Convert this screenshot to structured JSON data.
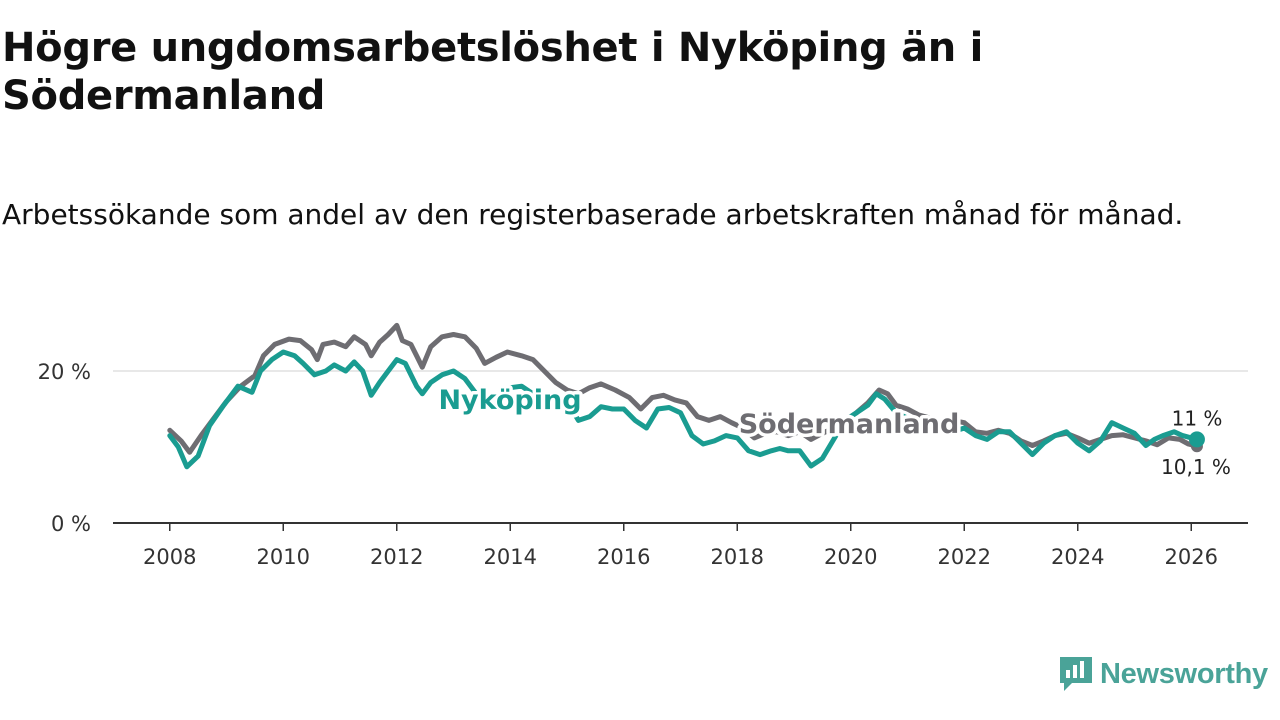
{
  "chart_data": {
    "type": "line",
    "title": "Högre ungdomsarbetslöshet i Nyköping än i Södermanland",
    "subtitle": "Arbetssökande som andel av den registerbaserade arbetskraften månad för månad.",
    "xlabel": "",
    "ylabel": "",
    "x_ticks": [
      "2008",
      "2010",
      "2012",
      "2014",
      "2016",
      "2018",
      "2020",
      "2022",
      "2024",
      "2026"
    ],
    "y_ticks": [
      0,
      20
    ],
    "y_tick_labels": [
      "0 %",
      "20 %"
    ],
    "xlim": [
      2007.0,
      2027.0
    ],
    "ylim": [
      0,
      30
    ],
    "grid": true,
    "series": [
      {
        "name": "Södermanland",
        "color": "#6e6d72",
        "end_label": "10,1 %",
        "points": [
          [
            2008.0,
            12.2
          ],
          [
            2008.2,
            10.8
          ],
          [
            2008.35,
            9.3
          ],
          [
            2008.55,
            11.5
          ],
          [
            2008.75,
            13.5
          ],
          [
            2009.0,
            16.0
          ],
          [
            2009.25,
            18.0
          ],
          [
            2009.5,
            19.4
          ],
          [
            2009.65,
            22.0
          ],
          [
            2009.85,
            23.5
          ],
          [
            2010.1,
            24.2
          ],
          [
            2010.3,
            24.0
          ],
          [
            2010.5,
            22.8
          ],
          [
            2010.6,
            21.5
          ],
          [
            2010.7,
            23.5
          ],
          [
            2010.9,
            23.8
          ],
          [
            2011.1,
            23.2
          ],
          [
            2011.25,
            24.5
          ],
          [
            2011.45,
            23.5
          ],
          [
            2011.55,
            22.0
          ],
          [
            2011.7,
            23.8
          ],
          [
            2011.85,
            24.8
          ],
          [
            2012.0,
            26.0
          ],
          [
            2012.1,
            24.0
          ],
          [
            2012.25,
            23.5
          ],
          [
            2012.35,
            22.0
          ],
          [
            2012.45,
            20.5
          ],
          [
            2012.6,
            23.2
          ],
          [
            2012.8,
            24.5
          ],
          [
            2013.0,
            24.8
          ],
          [
            2013.2,
            24.5
          ],
          [
            2013.4,
            23.0
          ],
          [
            2013.55,
            21.0
          ],
          [
            2013.75,
            21.8
          ],
          [
            2013.95,
            22.5
          ],
          [
            2014.2,
            22.0
          ],
          [
            2014.4,
            21.5
          ],
          [
            2014.6,
            20.0
          ],
          [
            2014.8,
            18.5
          ],
          [
            2015.0,
            17.5
          ],
          [
            2015.2,
            17.0
          ],
          [
            2015.4,
            17.8
          ],
          [
            2015.6,
            18.3
          ],
          [
            2015.85,
            17.5
          ],
          [
            2016.1,
            16.5
          ],
          [
            2016.3,
            15.0
          ],
          [
            2016.5,
            16.5
          ],
          [
            2016.7,
            16.8
          ],
          [
            2016.9,
            16.2
          ],
          [
            2017.1,
            15.8
          ],
          [
            2017.3,
            14.0
          ],
          [
            2017.5,
            13.5
          ],
          [
            2017.7,
            14.0
          ],
          [
            2017.9,
            13.2
          ],
          [
            2018.1,
            12.5
          ],
          [
            2018.3,
            11.2
          ],
          [
            2018.5,
            11.8
          ],
          [
            2018.7,
            12.0
          ],
          [
            2018.9,
            11.5
          ],
          [
            2019.1,
            12.0
          ],
          [
            2019.3,
            11.0
          ],
          [
            2019.5,
            11.8
          ],
          [
            2019.7,
            12.5
          ],
          [
            2019.9,
            13.5
          ],
          [
            2020.1,
            14.5
          ],
          [
            2020.3,
            15.8
          ],
          [
            2020.5,
            17.5
          ],
          [
            2020.65,
            17.0
          ],
          [
            2020.8,
            15.5
          ],
          [
            2021.0,
            15.0
          ],
          [
            2021.2,
            14.2
          ],
          [
            2021.4,
            13.8
          ],
          [
            2021.6,
            13.2
          ],
          [
            2021.8,
            13.5
          ],
          [
            2022.0,
            13.2
          ],
          [
            2022.2,
            12.0
          ],
          [
            2022.4,
            11.8
          ],
          [
            2022.6,
            12.2
          ],
          [
            2022.8,
            11.8
          ],
          [
            2023.0,
            10.8
          ],
          [
            2023.2,
            10.2
          ],
          [
            2023.4,
            10.8
          ],
          [
            2023.6,
            11.5
          ],
          [
            2023.8,
            11.8
          ],
          [
            2024.0,
            11.2
          ],
          [
            2024.2,
            10.5
          ],
          [
            2024.4,
            11.0
          ],
          [
            2024.6,
            11.5
          ],
          [
            2024.8,
            11.6
          ],
          [
            2025.0,
            11.2
          ],
          [
            2025.2,
            10.8
          ],
          [
            2025.4,
            10.3
          ],
          [
            2025.6,
            11.2
          ],
          [
            2025.8,
            11.0
          ],
          [
            2025.95,
            10.4
          ],
          [
            2026.1,
            10.1
          ]
        ]
      },
      {
        "name": "Nyköping",
        "color": "#1a9c91",
        "end_label": "11 %",
        "points": [
          [
            2008.0,
            11.5
          ],
          [
            2008.15,
            10.0
          ],
          [
            2008.3,
            7.4
          ],
          [
            2008.5,
            8.8
          ],
          [
            2008.7,
            12.8
          ],
          [
            2008.95,
            15.5
          ],
          [
            2009.2,
            18.0
          ],
          [
            2009.45,
            17.2
          ],
          [
            2009.6,
            20.0
          ],
          [
            2009.8,
            21.5
          ],
          [
            2010.0,
            22.5
          ],
          [
            2010.2,
            22.0
          ],
          [
            2010.35,
            21.0
          ],
          [
            2010.55,
            19.5
          ],
          [
            2010.75,
            20.0
          ],
          [
            2010.9,
            20.8
          ],
          [
            2011.1,
            20.0
          ],
          [
            2011.25,
            21.2
          ],
          [
            2011.4,
            20.0
          ],
          [
            2011.55,
            16.8
          ],
          [
            2011.7,
            18.5
          ],
          [
            2011.85,
            20.0
          ],
          [
            2012.0,
            21.5
          ],
          [
            2012.15,
            21.0
          ],
          [
            2012.35,
            18.0
          ],
          [
            2012.45,
            17.0
          ],
          [
            2012.6,
            18.5
          ],
          [
            2012.8,
            19.5
          ],
          [
            2013.0,
            20.0
          ],
          [
            2013.2,
            19.0
          ],
          [
            2013.4,
            17.0
          ],
          [
            2013.6,
            15.2
          ],
          [
            2013.8,
            16.8
          ],
          [
            2014.0,
            17.8
          ],
          [
            2014.2,
            18.0
          ],
          [
            2014.4,
            17.0
          ],
          [
            2014.6,
            16.3
          ],
          [
            2014.8,
            16.5
          ],
          [
            2015.0,
            16.0
          ],
          [
            2015.2,
            13.5
          ],
          [
            2015.4,
            14.0
          ],
          [
            2015.6,
            15.3
          ],
          [
            2015.8,
            15.0
          ],
          [
            2016.0,
            15.0
          ],
          [
            2016.2,
            13.5
          ],
          [
            2016.4,
            12.5
          ],
          [
            2016.6,
            15.0
          ],
          [
            2016.8,
            15.2
          ],
          [
            2017.0,
            14.5
          ],
          [
            2017.2,
            11.5
          ],
          [
            2017.4,
            10.4
          ],
          [
            2017.6,
            10.8
          ],
          [
            2017.8,
            11.5
          ],
          [
            2018.0,
            11.2
          ],
          [
            2018.2,
            9.5
          ],
          [
            2018.4,
            9.0
          ],
          [
            2018.6,
            9.5
          ],
          [
            2018.75,
            9.8
          ],
          [
            2018.9,
            9.5
          ],
          [
            2019.1,
            9.5
          ],
          [
            2019.3,
            7.5
          ],
          [
            2019.5,
            8.5
          ],
          [
            2019.7,
            11.0
          ],
          [
            2019.9,
            13.5
          ],
          [
            2020.1,
            14.5
          ],
          [
            2020.3,
            15.5
          ],
          [
            2020.45,
            17.0
          ],
          [
            2020.6,
            16.3
          ],
          [
            2020.8,
            14.5
          ],
          [
            2021.0,
            13.8
          ],
          [
            2021.2,
            13.0
          ],
          [
            2021.4,
            12.5
          ],
          [
            2021.6,
            12.2
          ],
          [
            2021.8,
            12.0
          ],
          [
            2022.0,
            12.5
          ],
          [
            2022.2,
            11.5
          ],
          [
            2022.4,
            11.0
          ],
          [
            2022.6,
            12.0
          ],
          [
            2022.8,
            12.0
          ],
          [
            2023.0,
            10.5
          ],
          [
            2023.2,
            9.0
          ],
          [
            2023.4,
            10.5
          ],
          [
            2023.6,
            11.5
          ],
          [
            2023.8,
            12.0
          ],
          [
            2024.0,
            10.5
          ],
          [
            2024.2,
            9.5
          ],
          [
            2024.4,
            10.8
          ],
          [
            2024.6,
            13.2
          ],
          [
            2024.8,
            12.5
          ],
          [
            2025.0,
            11.8
          ],
          [
            2025.2,
            10.2
          ],
          [
            2025.35,
            11.0
          ],
          [
            2025.5,
            11.5
          ],
          [
            2025.7,
            12.0
          ],
          [
            2025.85,
            11.5
          ],
          [
            2026.1,
            11.0
          ]
        ]
      }
    ]
  },
  "brand": {
    "name": "Newsworthy",
    "color": "#4aa398"
  }
}
